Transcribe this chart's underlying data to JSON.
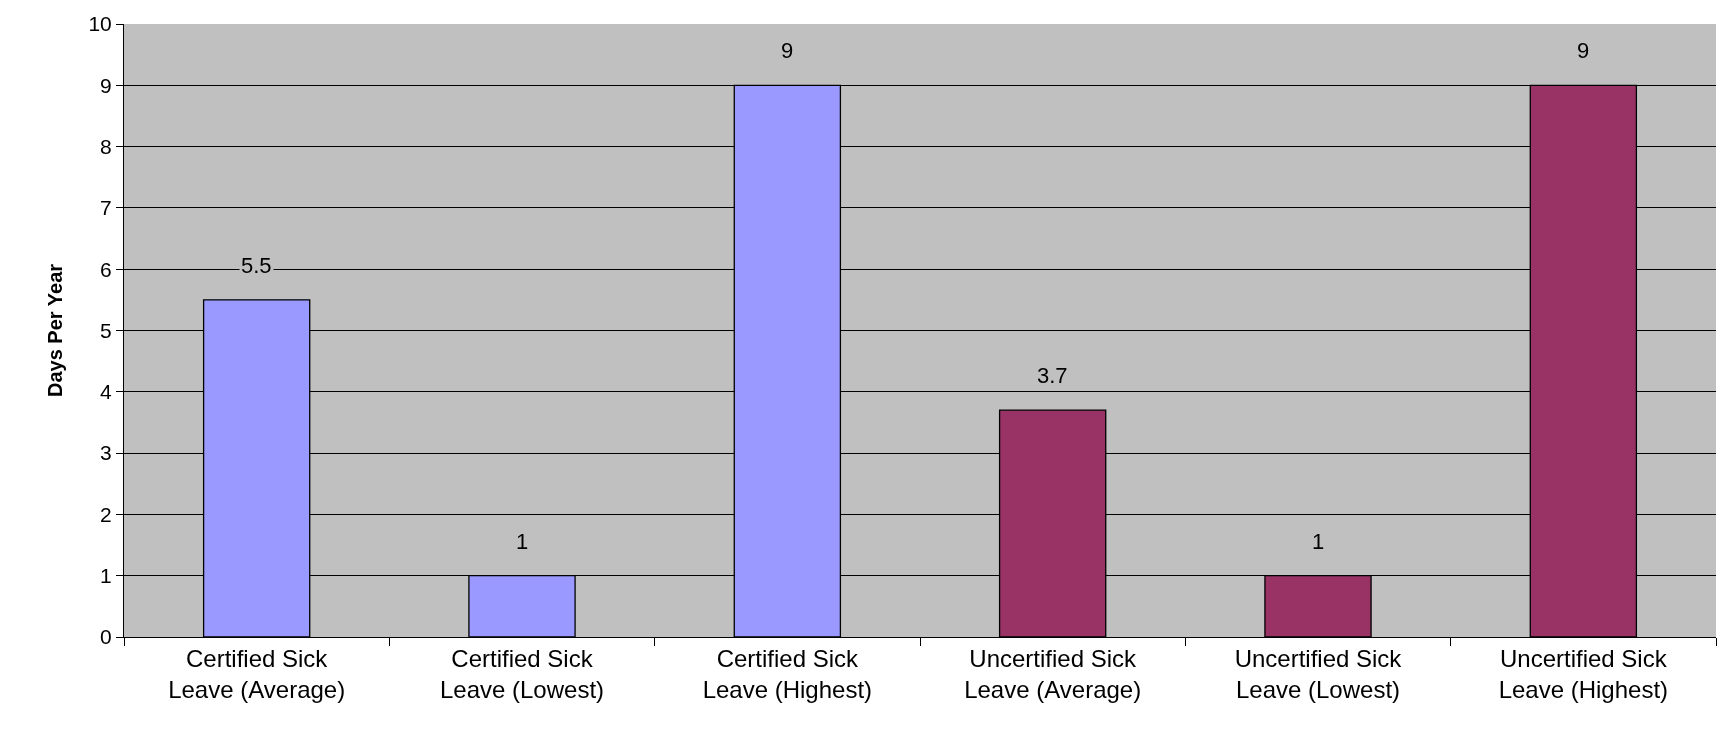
{
  "chart_data": {
    "type": "bar",
    "ylabel": "Days Per Year",
    "categories": [
      "Certified Sick Leave (Average)",
      "Certified Sick Leave (Lowest)",
      "Certified Sick Leave (Highest)",
      "Uncertified Sick Leave (Average)",
      "Uncertified Sick Leave (Lowest)",
      "Uncertified Sick Leave (Highest)"
    ],
    "values": [
      5.5,
      1,
      9,
      3.7,
      1,
      9
    ],
    "colors": [
      "#9999ff",
      "#9999ff",
      "#9999ff",
      "#993366",
      "#993366",
      "#993366"
    ],
    "ylim": [
      0,
      10
    ],
    "yticks": [
      0,
      1,
      2,
      3,
      4,
      5,
      6,
      7,
      8,
      9,
      10
    ],
    "grid": "y",
    "data_labels": true
  }
}
